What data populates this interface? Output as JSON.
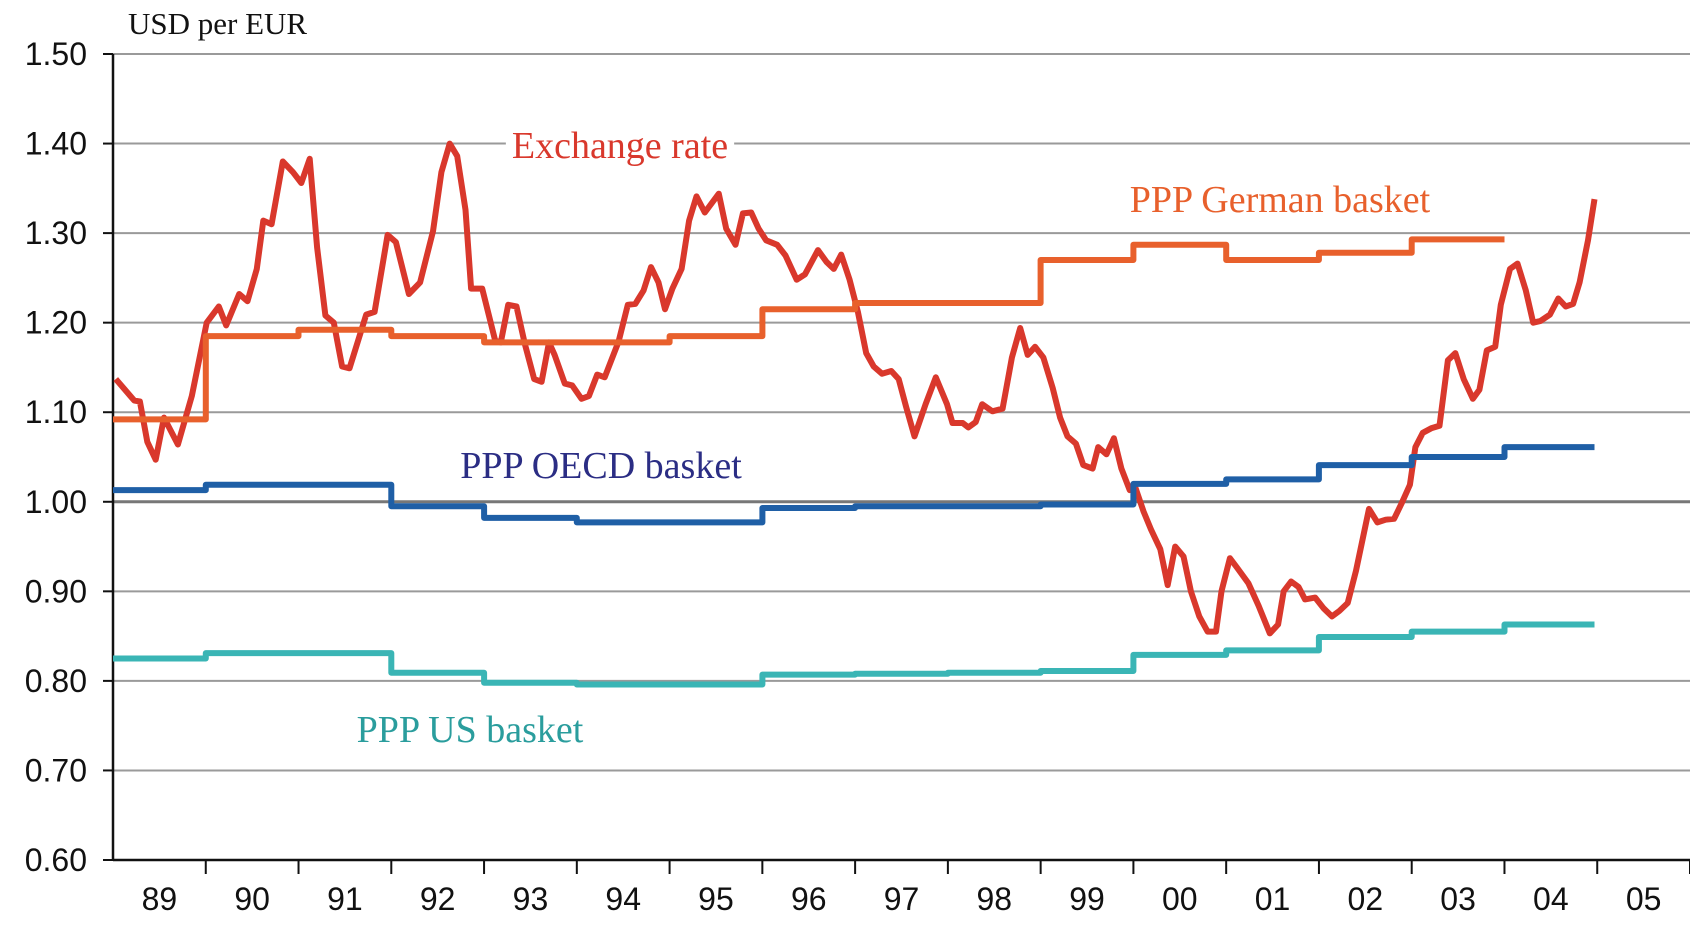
{
  "chart_data": {
    "type": "line",
    "y_axis_label": "USD per EUR",
    "xlim": [
      1989,
      2006
    ],
    "xticks": [
      {
        "value": 1989.5,
        "label": "89"
      },
      {
        "value": 1990.5,
        "label": "90"
      },
      {
        "value": 1991.5,
        "label": "91"
      },
      {
        "value": 1992.5,
        "label": "92"
      },
      {
        "value": 1993.5,
        "label": "93"
      },
      {
        "value": 1994.5,
        "label": "94"
      },
      {
        "value": 1995.5,
        "label": "95"
      },
      {
        "value": 1996.5,
        "label": "96"
      },
      {
        "value": 1997.5,
        "label": "97"
      },
      {
        "value": 1998.5,
        "label": "98"
      },
      {
        "value": 1999.5,
        "label": "99"
      },
      {
        "value": 2000.5,
        "label": "00"
      },
      {
        "value": 2001.5,
        "label": "01"
      },
      {
        "value": 2002.5,
        "label": "02"
      },
      {
        "value": 2003.5,
        "label": "03"
      },
      {
        "value": 2004.5,
        "label": "04"
      },
      {
        "value": 2005.5,
        "label": "05"
      }
    ],
    "ylim": [
      0.6,
      1.5
    ],
    "yticks": [
      {
        "value": 0.6,
        "label": "0.60"
      },
      {
        "value": 0.7,
        "label": "0.70"
      },
      {
        "value": 0.8,
        "label": "0.80"
      },
      {
        "value": 0.9,
        "label": "0.90"
      },
      {
        "value": 1.0,
        "label": "1.00"
      },
      {
        "value": 1.1,
        "label": "1.10"
      },
      {
        "value": 1.2,
        "label": "1.20"
      },
      {
        "value": 1.3,
        "label": "1.30"
      },
      {
        "value": 1.4,
        "label": "1.40"
      },
      {
        "value": 1.5,
        "label": "1.50"
      }
    ],
    "grid": true,
    "series": [
      {
        "name": "Exchange rate",
        "color": "#d9382c",
        "x": [
          1989.03,
          1989.23,
          1989.29,
          1989.37,
          1989.46,
          1989.55,
          1989.7,
          1989.85,
          1990.01,
          1990.14,
          1990.22,
          1990.36,
          1990.45,
          1990.55,
          1990.62,
          1990.71,
          1990.83,
          1990.94,
          1991.03,
          1991.12,
          1991.2,
          1991.29,
          1991.38,
          1991.47,
          1991.55,
          1991.73,
          1991.82,
          1991.96,
          1992.05,
          1992.19,
          1992.31,
          1992.45,
          1992.54,
          1992.63,
          1992.71,
          1992.8,
          1992.86,
          1992.98,
          1993.12,
          1993.18,
          1993.26,
          1993.35,
          1993.44,
          1993.54,
          1993.62,
          1993.7,
          1993.76,
          1993.87,
          1993.95,
          1994.05,
          1994.13,
          1994.22,
          1994.3,
          1994.45,
          1994.55,
          1994.63,
          1994.72,
          1994.8,
          1994.88,
          1994.95,
          1995.03,
          1995.13,
          1995.21,
          1995.29,
          1995.38,
          1995.53,
          1995.61,
          1995.71,
          1995.79,
          1995.88,
          1995.96,
          1996.04,
          1996.16,
          1996.25,
          1996.37,
          1996.46,
          1996.6,
          1996.69,
          1996.77,
          1996.85,
          1996.94,
          1997.03,
          1997.12,
          1997.2,
          1997.29,
          1997.39,
          1997.47,
          1997.55,
          1997.64,
          1997.76,
          1997.87,
          1997.99,
          1998.05,
          1998.16,
          1998.22,
          1998.3,
          1998.37,
          1998.48,
          1998.59,
          1998.69,
          1998.78,
          1998.86,
          1998.94,
          1999.03,
          1999.13,
          1999.21,
          1999.29,
          1999.38,
          1999.46,
          1999.56,
          1999.62,
          1999.71,
          1999.79,
          1999.87,
          1999.96,
          2000.02,
          2000.11,
          2000.19,
          2000.29,
          2000.37,
          2000.45,
          2000.54,
          2000.62,
          2000.71,
          2000.8,
          2000.89,
          2000.95,
          2001.04,
          2001.12,
          2001.24,
          2001.35,
          2001.47,
          2001.56,
          2001.62,
          2001.7,
          2001.78,
          2001.85,
          2001.96,
          2002.05,
          2002.14,
          2002.22,
          2002.31,
          2002.4,
          2002.54,
          2002.63,
          2002.72,
          2002.81,
          2002.89,
          2002.98,
          2003.04,
          2003.12,
          2003.21,
          2003.3,
          2003.39,
          2003.47,
          2003.56,
          2003.66,
          2003.73,
          2003.81,
          2003.9,
          2003.96,
          2004.06,
          2004.14,
          2004.23,
          2004.31,
          2004.39,
          2004.49,
          2004.58,
          2004.66,
          2004.74,
          2004.81,
          2004.9,
          2004.97
        ],
        "values": [
          1.137,
          1.113,
          1.112,
          1.067,
          1.047,
          1.094,
          1.064,
          1.118,
          1.2,
          1.218,
          1.197,
          1.232,
          1.224,
          1.26,
          1.314,
          1.31,
          1.38,
          1.368,
          1.356,
          1.383,
          1.284,
          1.208,
          1.2,
          1.151,
          1.149,
          1.209,
          1.212,
          1.298,
          1.29,
          1.232,
          1.245,
          1.302,
          1.368,
          1.4,
          1.386,
          1.326,
          1.238,
          1.238,
          1.18,
          1.178,
          1.22,
          1.218,
          1.176,
          1.137,
          1.134,
          1.178,
          1.164,
          1.132,
          1.13,
          1.115,
          1.118,
          1.142,
          1.139,
          1.179,
          1.22,
          1.221,
          1.236,
          1.262,
          1.245,
          1.215,
          1.238,
          1.26,
          1.314,
          1.341,
          1.323,
          1.344,
          1.305,
          1.287,
          1.322,
          1.323,
          1.305,
          1.292,
          1.287,
          1.275,
          1.248,
          1.254,
          1.281,
          1.268,
          1.26,
          1.276,
          1.248,
          1.212,
          1.166,
          1.151,
          1.143,
          1.146,
          1.137,
          1.106,
          1.073,
          1.109,
          1.139,
          1.109,
          1.088,
          1.088,
          1.083,
          1.089,
          1.109,
          1.101,
          1.104,
          1.161,
          1.194,
          1.164,
          1.173,
          1.161,
          1.127,
          1.094,
          1.073,
          1.065,
          1.041,
          1.037,
          1.061,
          1.053,
          1.071,
          1.037,
          1.013,
          1.016,
          0.989,
          0.969,
          0.947,
          0.907,
          0.95,
          0.939,
          0.9,
          0.872,
          0.855,
          0.855,
          0.9,
          0.937,
          0.926,
          0.909,
          0.884,
          0.853,
          0.863,
          0.9,
          0.911,
          0.905,
          0.891,
          0.893,
          0.881,
          0.872,
          0.878,
          0.887,
          0.923,
          0.992,
          0.977,
          0.98,
          0.981,
          0.998,
          1.019,
          1.061,
          1.077,
          1.082,
          1.085,
          1.158,
          1.166,
          1.137,
          1.115,
          1.125,
          1.169,
          1.173,
          1.22,
          1.26,
          1.266,
          1.236,
          1.2,
          1.202,
          1.209,
          1.227,
          1.218,
          1.221,
          1.245,
          1.292,
          1.338
        ]
      },
      {
        "name": "PPP German basket",
        "color": "#e8602c",
        "x": [
          1989,
          1990,
          1990,
          1991,
          1991,
          1992,
          1992,
          1993,
          1993,
          1995,
          1995,
          1996,
          1996,
          1997,
          1997,
          1999,
          1999,
          2000,
          2000,
          2001,
          2001,
          2002,
          2002,
          2003,
          2003,
          2004
        ],
        "values": [
          1.092,
          1.092,
          1.185,
          1.185,
          1.192,
          1.192,
          1.185,
          1.185,
          1.178,
          1.178,
          1.185,
          1.185,
          1.215,
          1.215,
          1.222,
          1.222,
          1.27,
          1.27,
          1.287,
          1.287,
          1.27,
          1.27,
          1.278,
          1.278,
          1.293,
          1.293
        ]
      },
      {
        "name": "PPP OECD basket",
        "color": "#1f5fa6",
        "label_color": "#2b2d84",
        "x": [
          1989,
          1990,
          1990,
          1992,
          1992,
          1993,
          1993,
          1994,
          1994,
          1996,
          1996,
          1997,
          1997,
          1999,
          1999,
          2000,
          2000,
          2001,
          2001,
          2002,
          2002,
          2003,
          2003,
          2004,
          2004,
          2004.97
        ],
        "values": [
          1.013,
          1.013,
          1.019,
          1.019,
          0.995,
          0.995,
          0.982,
          0.982,
          0.977,
          0.977,
          0.993,
          0.993,
          0.995,
          0.995,
          0.997,
          0.997,
          1.02,
          1.02,
          1.025,
          1.025,
          1.041,
          1.041,
          1.05,
          1.05,
          1.061,
          1.061
        ]
      },
      {
        "name": "PPP US basket",
        "color": "#3ab5b5",
        "label_color": "#2a9d9d",
        "x": [
          1989,
          1990,
          1990,
          1992,
          1992,
          1993,
          1993,
          1994,
          1994,
          1996,
          1996,
          1997,
          1997,
          1998,
          1998,
          1999,
          1999,
          2000,
          2000,
          2001,
          2001,
          2002,
          2002,
          2003,
          2003,
          2004,
          2004,
          2004.97
        ],
        "values": [
          0.825,
          0.825,
          0.831,
          0.831,
          0.809,
          0.809,
          0.798,
          0.798,
          0.796,
          0.796,
          0.807,
          0.807,
          0.808,
          0.808,
          0.809,
          0.809,
          0.811,
          0.811,
          0.829,
          0.829,
          0.834,
          0.834,
          0.849,
          0.849,
          0.855,
          0.855,
          0.863,
          0.863
        ]
      }
    ]
  }
}
